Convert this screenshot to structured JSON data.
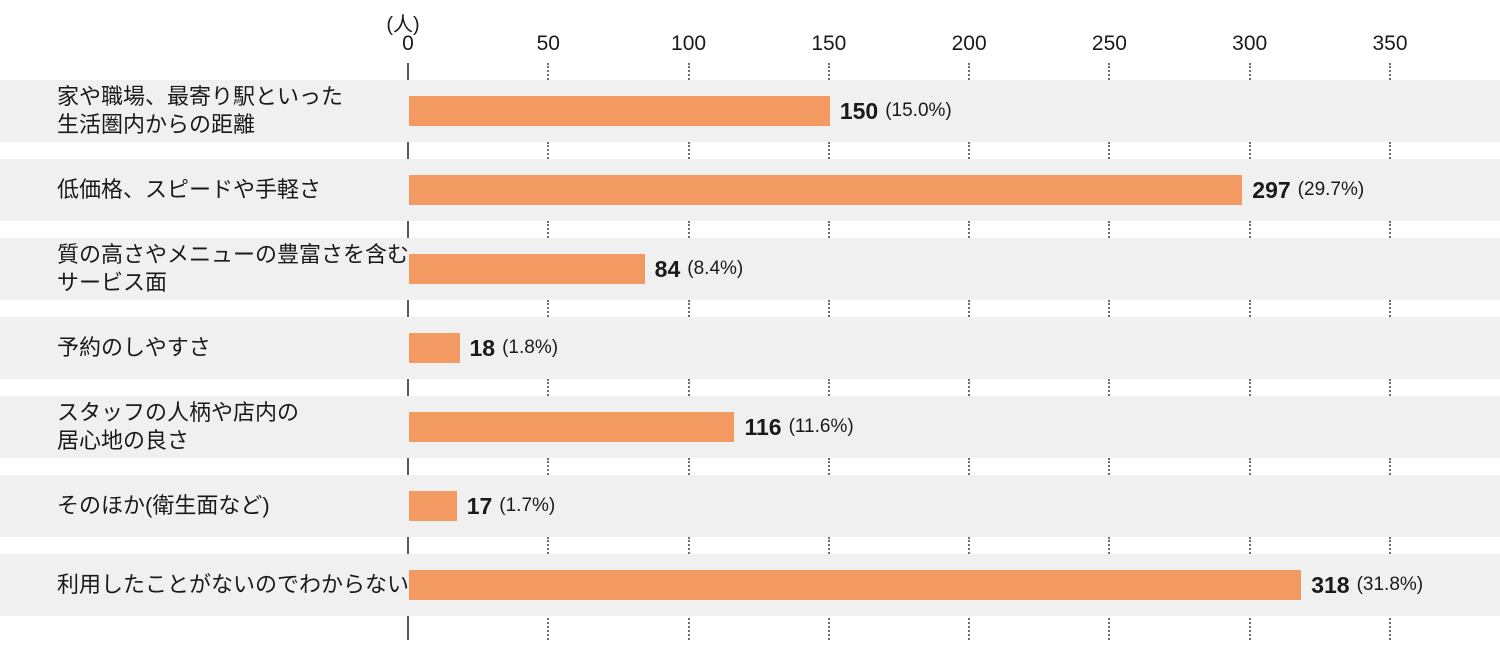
{
  "chart_data": {
    "type": "bar",
    "orientation": "horizontal",
    "title": "",
    "unit_label": "(人)",
    "x_ticks": [
      "0",
      "50",
      "100",
      "150",
      "200",
      "250",
      "300",
      "350"
    ],
    "x_tick_values": [
      0,
      50,
      100,
      150,
      200,
      250,
      300,
      350
    ],
    "xlim": [
      0,
      380
    ],
    "categories": [
      "家や職場、最寄り駅といった 生活圏内からの距離",
      "低価格、スピードや手軽さ",
      "質の高さやメニューの豊富さを含む サービス面",
      "予約のしやすさ",
      "スタッフの人柄や店内の 居心地の良さ",
      "そのほか(衛生面など)",
      "利用したことがないのでわからない"
    ],
    "category_lines": [
      [
        "家や職場、最寄り駅といった",
        "生活圏内からの距離"
      ],
      [
        "低価格、スピードや手軽さ"
      ],
      [
        "質の高さやメニューの豊富さを含む",
        "サービス面"
      ],
      [
        "予約のしやすさ"
      ],
      [
        "スタッフの人柄や店内の",
        "居心地の良さ"
      ],
      [
        "そのほか(衛生面など)"
      ],
      [
        "利用したことがないのでわからない"
      ]
    ],
    "values": [
      150,
      297,
      84,
      18,
      116,
      17,
      318
    ],
    "value_labels": [
      "150",
      "297",
      "84",
      "18",
      "116",
      "17",
      "318"
    ],
    "percent_labels": [
      "(15.0%)",
      "(29.7%)",
      "(8.4%)",
      "(1.8%)",
      "(11.6%)",
      "(1.7%)",
      "(31.8%)"
    ],
    "colors": {
      "bar": "#F29A62",
      "row_background": "#F0F0F0",
      "axis_line": "#58595B",
      "grid_dots": "#6E6E6E",
      "text": "#1A1A1A"
    },
    "grid": "dotted vertical tick segments shown between row bands",
    "legend": "none"
  }
}
